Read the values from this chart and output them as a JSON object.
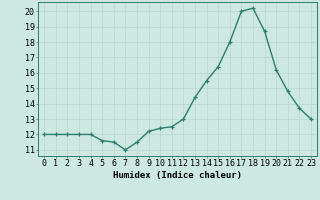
{
  "x": [
    0,
    1,
    2,
    3,
    4,
    5,
    6,
    7,
    8,
    9,
    10,
    11,
    12,
    13,
    14,
    15,
    16,
    17,
    18,
    19,
    20,
    21,
    22,
    23
  ],
  "y": [
    12,
    12,
    12,
    12,
    12,
    11.6,
    11.5,
    11,
    11.5,
    12.2,
    12.4,
    12.5,
    13,
    14.4,
    15.5,
    16.4,
    18,
    20,
    20.2,
    18.7,
    16.2,
    14.8,
    13.7,
    13
  ],
  "line_color": "#2e7d6e",
  "bg_color": "#cce8e0",
  "grid_color": "#b8d8d0",
  "xlabel": "Humidex (Indice chaleur)",
  "ylim": [
    10.6,
    20.6
  ],
  "xlim": [
    -0.5,
    23.5
  ],
  "yticks": [
    11,
    12,
    13,
    14,
    15,
    16,
    17,
    18,
    19,
    20
  ],
  "xtick_labels": [
    "0",
    "1",
    "2",
    "3",
    "4",
    "5",
    "6",
    "7",
    "8",
    "9",
    "10",
    "11",
    "12",
    "13",
    "14",
    "15",
    "16",
    "17",
    "18",
    "19",
    "20",
    "21",
    "22",
    "23"
  ],
  "marker": "+",
  "linewidth": 1.0,
  "markersize": 3.5,
  "xlabel_fontsize": 6.5,
  "tick_fontsize": 6.0
}
